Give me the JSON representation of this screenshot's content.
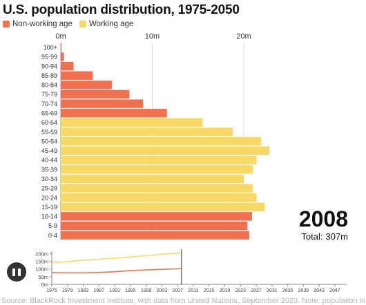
{
  "title": "U.S. population distribution, 1975-2050",
  "legend": [
    {
      "label": "Non-working age",
      "color": "#f07050"
    },
    {
      "label": "Working age",
      "color": "#f9d966"
    }
  ],
  "colors": {
    "non_working": "#f07050",
    "working": "#f9d966"
  },
  "year": "2008",
  "total": {
    "prefix": "Total:",
    "value": "307m"
  },
  "source": "Source: BlackRock Investment Institute, with data from United Nations, September 2023. Note: population in",
  "controls": {
    "pause_icon": "pause-icon"
  },
  "chart_data": [
    {
      "type": "bar",
      "orientation": "horizontal",
      "year": 2008,
      "x_ticks": [
        "0m",
        "10m",
        "20m"
      ],
      "x_tick_values": [
        0,
        10,
        20
      ],
      "xlim": [
        0,
        22.5
      ],
      "unit": "millions",
      "grid": true,
      "categories": [
        "100+",
        "95-99",
        "90-94",
        "85-89",
        "80-84",
        "75-79",
        "70-74",
        "65-69",
        "60-64",
        "55-59",
        "50-54",
        "45-49",
        "40-44",
        "35-39",
        "30-34",
        "25-29",
        "20-24",
        "15-19",
        "10-14",
        "5-9",
        "0-4"
      ],
      "groups": [
        "non_working",
        "non_working",
        "non_working",
        "non_working",
        "non_working",
        "non_working",
        "non_working",
        "non_working",
        "working",
        "working",
        "working",
        "working",
        "working",
        "working",
        "working",
        "working",
        "working",
        "working",
        "non_working",
        "non_working",
        "non_working"
      ],
      "values": [
        0.07,
        0.35,
        1.4,
        3.5,
        5.6,
        7.5,
        9.0,
        11.6,
        15.5,
        18.8,
        21.9,
        22.8,
        21.4,
        21.0,
        20.0,
        21.0,
        21.4,
        22.3,
        20.9,
        20.4,
        20.6
      ]
    },
    {
      "type": "line",
      "x_ticks": [
        1975,
        1979,
        1983,
        1987,
        1991,
        1995,
        1999,
        2003,
        2007,
        2011,
        2015,
        2019,
        2023,
        2027,
        2031,
        2035,
        2039,
        2043,
        2047
      ],
      "xlim": [
        1975,
        2050
      ],
      "y_ticks": [
        "0m",
        "50m",
        "100m",
        "150m",
        "200m"
      ],
      "y_tick_values": [
        0,
        50,
        100,
        150,
        200
      ],
      "ylim": [
        0,
        215
      ],
      "current_year": 2008,
      "x": [
        1975,
        1979,
        1983,
        1987,
        1991,
        1995,
        1999,
        2003,
        2008
      ],
      "series": [
        {
          "group": "working",
          "values": [
            140,
            148,
            157,
            164,
            170,
            178,
            186,
            196,
            204
          ]
        },
        {
          "group": "non_working",
          "values": [
            76,
            75,
            75,
            77,
            82,
            89,
            94,
            97,
            102
          ]
        }
      ]
    }
  ]
}
